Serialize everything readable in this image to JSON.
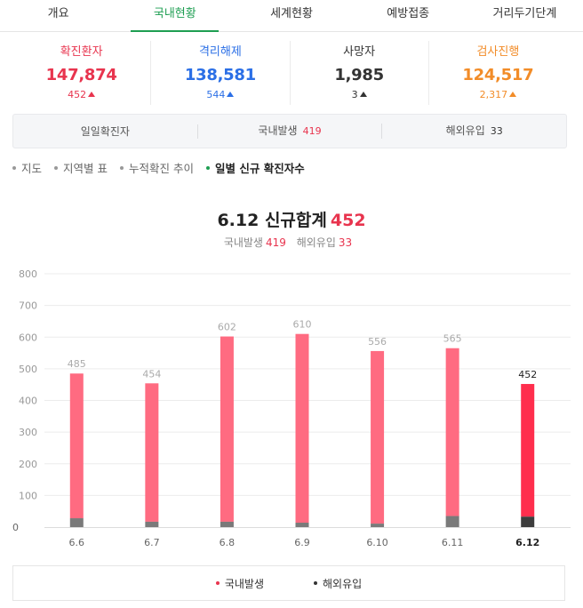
{
  "tabs": [
    {
      "label": "개요",
      "active": false
    },
    {
      "label": "국내현황",
      "active": true
    },
    {
      "label": "세계현황",
      "active": false
    },
    {
      "label": "예방접종",
      "active": false
    },
    {
      "label": "거리두기단계",
      "active": false
    }
  ],
  "stats": {
    "confirmed": {
      "label": "확진환자",
      "value": "147,874",
      "delta": "452",
      "color": "#e8344e"
    },
    "released": {
      "label": "격리해제",
      "value": "138,581",
      "delta": "544",
      "color": "#2b6fe6"
    },
    "deaths": {
      "label": "사망자",
      "value": "1,985",
      "delta": "3",
      "color": "#333333"
    },
    "testing": {
      "label": "검사진행",
      "value": "124,517",
      "delta": "2,317",
      "color": "#f28c28"
    }
  },
  "daily": {
    "label": "일일확진자",
    "domestic_label": "국내발생",
    "domestic_value": "419",
    "overseas_label": "해외유입",
    "overseas_value": "33"
  },
  "subnav": [
    {
      "label": "지도",
      "active": false
    },
    {
      "label": "지역별 표",
      "active": false
    },
    {
      "label": "누적확진 추이",
      "active": false
    },
    {
      "label": "일별 신규 확진자수",
      "active": true
    }
  ],
  "chart_header": {
    "title": "6.12 신규합계",
    "total": "452",
    "domestic_label": "국내발생",
    "domestic_value": "419",
    "overseas_label": "해외유입",
    "overseas_value": "33"
  },
  "legend": {
    "domestic": "국내발생",
    "overseas": "해외유입"
  },
  "colors": {
    "accent": "#1e9e52",
    "domestic": "#ff6b81",
    "domestic_highlight": "#ff2e4d",
    "overseas": "#7a7a7a",
    "overseas_highlight": "#3d3d3d"
  },
  "chart_data": {
    "type": "bar",
    "stacked": true,
    "categories": [
      "6.6",
      "6.7",
      "6.8",
      "6.9",
      "6.10",
      "6.11",
      "6.12"
    ],
    "totals": [
      485,
      454,
      602,
      610,
      556,
      565,
      452
    ],
    "series": [
      {
        "name": "국내발생",
        "values": [
          457,
          437,
          585,
          596,
          545,
          530,
          419
        ]
      },
      {
        "name": "해외유입",
        "values": [
          28,
          17,
          17,
          14,
          11,
          35,
          33
        ]
      }
    ],
    "y_ticks": [
      0,
      100,
      200,
      300,
      400,
      500,
      600,
      700,
      800
    ],
    "ylim": [
      0,
      800
    ],
    "highlight_index": 6,
    "grid": true
  }
}
